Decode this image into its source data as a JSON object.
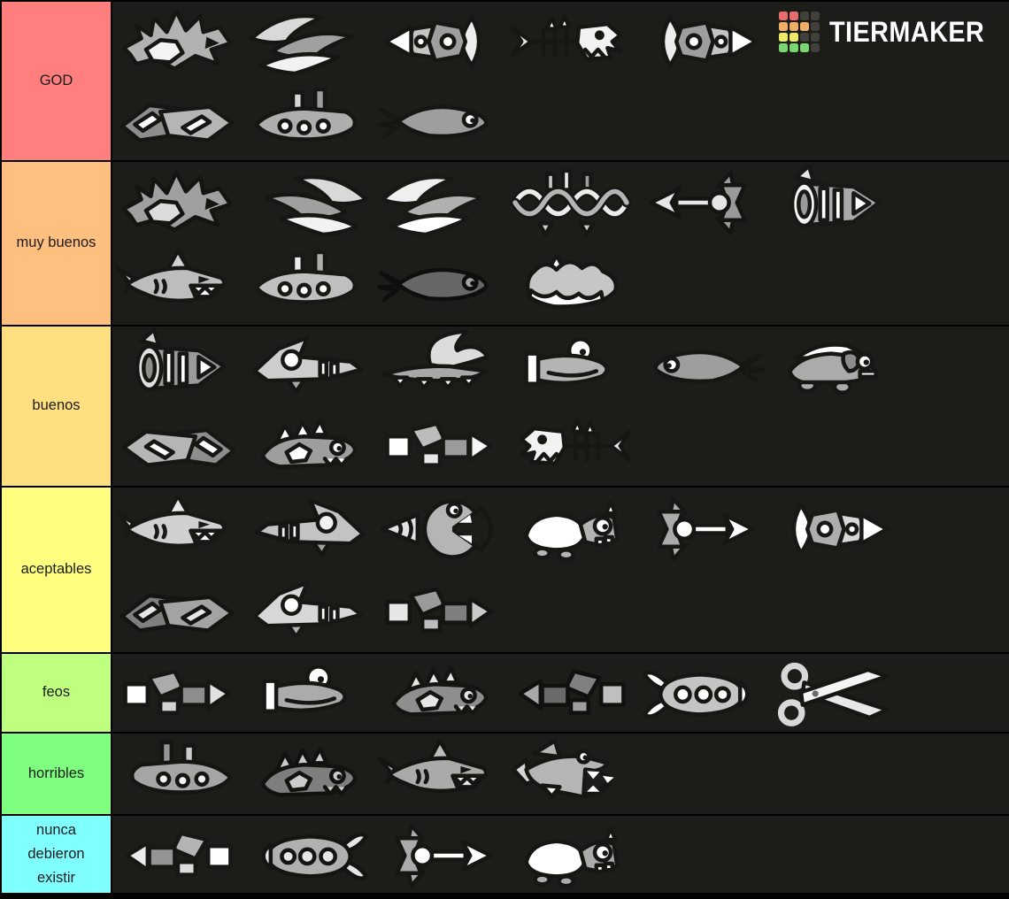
{
  "page": {
    "background_color": "#1c1c19",
    "border_color": "#000000",
    "sprite_outline_color": "#161613"
  },
  "logo": {
    "text": "TIERMAKER",
    "text_color": "#ffffff",
    "grid_colors": [
      [
        "#e96b6b",
        "#e96b6b",
        "#3f3f3c",
        "#3f3f3c"
      ],
      [
        "#efae68",
        "#efae68",
        "#efae68",
        "#3f3f3c"
      ],
      [
        "#efe968",
        "#efe968",
        "#3f3f3c",
        "#3f3f3c"
      ],
      [
        "#79d671",
        "#79d671",
        "#79d671",
        "#3f3f3c"
      ]
    ]
  },
  "tiers": [
    {
      "label": "GOD",
      "color": "#FF7F7F",
      "lines": [
        [
          {
            "name": "dragon-diamond-ship",
            "sprite": "spiky"
          },
          {
            "name": "spike-blade-ship",
            "sprite": "blades"
          },
          {
            "name": "orb-armor-ship",
            "sprite": "lance",
            "flip": true
          },
          {
            "name": "skeleton-fish",
            "sprite": "skeleton"
          },
          {
            "name": "segmented-lance-rocket",
            "sprite": "lance"
          }
        ],
        [
          {
            "name": "blocky-freighter-ship",
            "sprite": "blocky"
          },
          {
            "name": "pillar-barge-ship",
            "sprite": "submarine"
          },
          {
            "name": "comet-fish",
            "sprite": "comet"
          }
        ]
      ]
    },
    {
      "label": "muy buenos",
      "color": "#FFBF7F",
      "lines": [
        [
          {
            "name": "spiky-dragon-serpent",
            "sprite": "spiky",
            "shade": 0.9
          },
          {
            "name": "armored-crescent-ship",
            "sprite": "blades",
            "flip": true
          },
          {
            "name": "triple-blade-fish",
            "sprite": "blades",
            "shade": 1.1
          },
          {
            "name": "dna-helix-ship",
            "sprite": "dna"
          },
          {
            "name": "harpoon-ship",
            "sprite": "arrowship",
            "flip": true,
            "shade": 0.9
          },
          {
            "name": "lance-cannon-ship",
            "sprite": "turbine",
            "shade": 1.1
          }
        ],
        [
          {
            "name": "shark",
            "sprite": "shark"
          },
          {
            "name": "porthole-submarine",
            "sprite": "submarine",
            "shade": 1.1
          },
          {
            "name": "dark-spiky-fish",
            "sprite": "comet",
            "shade": 0.65
          },
          {
            "name": "sea-monster-whale",
            "sprite": "whale"
          }
        ]
      ]
    },
    {
      "label": "buenos",
      "color": "#FFDF7F",
      "lines": [
        [
          {
            "name": "turbine-engine-ship",
            "sprite": "turbine"
          },
          {
            "name": "jet-shark",
            "sprite": "jet"
          },
          {
            "name": "winged-serpent",
            "sprite": "wing"
          },
          {
            "name": "whale-submarine",
            "sprite": "eyesub",
            "shade": 1.05
          },
          {
            "name": "arrow-shark",
            "sprite": "comet",
            "flip": true
          },
          {
            "name": "puppy-fish",
            "sprite": "critter"
          }
        ],
        [
          {
            "name": "faceted-shark",
            "sprite": "blocky",
            "flip": true
          },
          {
            "name": "dino-fish",
            "sprite": "dino"
          },
          {
            "name": "hex-segment-ship",
            "sprite": "blocks",
            "shade": 1.1
          },
          {
            "name": "spike-fin-skeleton",
            "sprite": "skeleton",
            "flip": true
          }
        ]
      ]
    },
    {
      "label": "aceptables",
      "color": "#FFFF7F",
      "lines": [
        [
          {
            "name": "round-eye-shark",
            "sprite": "shark",
            "shade": 1.1
          },
          {
            "name": "angular-shark",
            "sprite": "jet",
            "flip": true,
            "shade": 0.95
          },
          {
            "name": "drill-chomper-fish",
            "sprite": "drill"
          },
          {
            "name": "eyepatch-fish",
            "sprite": "derpy",
            "shade": 1.05
          },
          {
            "name": "disc-fin-rocket",
            "sprite": "arrowship"
          },
          {
            "name": "cone-torpedo-ship",
            "sprite": "lance",
            "shade": 1.1
          }
        ],
        [
          {
            "name": "zigzag-layer-ship",
            "sprite": "blocky",
            "shade": 0.9
          },
          {
            "name": "folded-jet-ship",
            "sprite": "jet",
            "shade": 1.05
          },
          {
            "name": "tank-block-ship",
            "sprite": "blocks",
            "shade": 0.9
          }
        ]
      ]
    },
    {
      "label": "feos",
      "color": "#BFFF7F",
      "lines": [
        [
          {
            "name": "abstract-block-ship",
            "sprite": "blocks"
          },
          {
            "name": "eyeball-submarine",
            "sprite": "eyesub"
          },
          {
            "name": "robo-dino-fish",
            "sprite": "dino",
            "shade": 0.9
          },
          {
            "name": "scrap-wreck-ship",
            "sprite": "blocks",
            "flip": true,
            "shade": 0.75
          },
          {
            "name": "cartoon-rocket",
            "sprite": "rocket"
          },
          {
            "name": "scissors",
            "sprite": "scissors"
          }
        ]
      ]
    },
    {
      "label": "horribles",
      "color": "#7FFF7F",
      "lines": [
        [
          {
            "name": "porthole-block-sub",
            "sprite": "submarine",
            "flip": true,
            "shade": 0.95
          },
          {
            "name": "dino-mouth-monster",
            "sprite": "dino",
            "flip": false,
            "shade": 0.8
          },
          {
            "name": "fin-eye-shark",
            "sprite": "shark",
            "shade": 0.9
          },
          {
            "name": "toothy-shark",
            "sprite": "toothshark"
          }
        ]
      ]
    },
    {
      "label": "nunca debieron existir",
      "color": "#7FFFFF",
      "lines": [
        [
          {
            "name": "cone-block-ship",
            "sprite": "blocks",
            "flip": true,
            "shade": 1.05
          },
          {
            "name": "big-porthole-shark-sub",
            "sprite": "rocket",
            "flip": true,
            "shade": 0.9
          },
          {
            "name": "arrow-pierced-ship",
            "sprite": "arrowship"
          },
          {
            "name": "derpy-turtle-fish",
            "sprite": "derpy"
          }
        ]
      ]
    }
  ]
}
